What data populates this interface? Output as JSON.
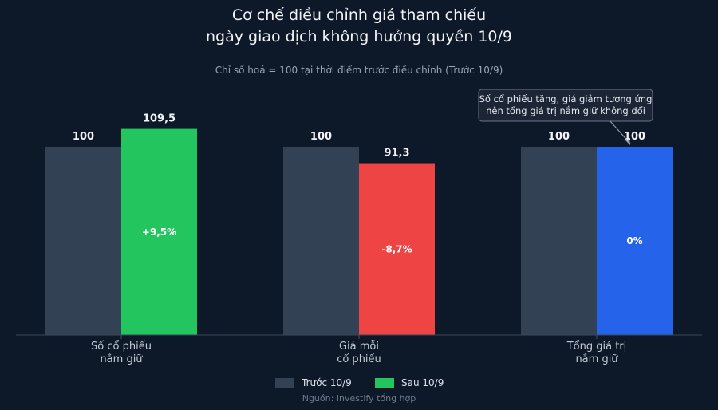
{
  "chart_data": {
    "type": "bar",
    "title": [
      "Cơ chế điều chỉnh giá tham chiếu",
      "ngày giao dịch không hưởng quyền 10/9"
    ],
    "subtitle": "Chỉ số hoá = 100 tại thời điểm trước điều chỉnh (Trước 10/9)",
    "categories": [
      [
        "Số cổ phiếu",
        "nắm giữ"
      ],
      [
        "Giá mỗi",
        "cổ phiếu"
      ],
      [
        "Tổng giá trị",
        "nắm giữ"
      ]
    ],
    "series": [
      {
        "name": "Trước 10/9",
        "values": [
          100,
          100,
          100
        ],
        "labels": [
          "100",
          "100",
          "100"
        ],
        "color": "#334155"
      },
      {
        "name": "Sau 10/9",
        "values": [
          109.5,
          91.3,
          100
        ],
        "labels": [
          "109,5",
          "91,3",
          "100"
        ],
        "colors": [
          "#22c55e",
          "#ef4444",
          "#2563eb"
        ]
      }
    ],
    "change_labels": [
      "+9,5%",
      "-8,7%",
      "0%"
    ],
    "legend": [
      {
        "name": "Trước 10/9",
        "color": "#334155"
      },
      {
        "name": "Sau 10/9",
        "color": "#22c55e"
      }
    ],
    "annotation": {
      "lines": [
        "Số cổ phiếu tăng, giá giảm tương ứng",
        "nên tổng giá trị nắm giữ không đổi"
      ],
      "category_index": 2
    },
    "ylim": [
      0,
      110
    ],
    "grid": false,
    "legend_position": "bottom",
    "source": "Nguồn: Investify tổng hợp"
  }
}
